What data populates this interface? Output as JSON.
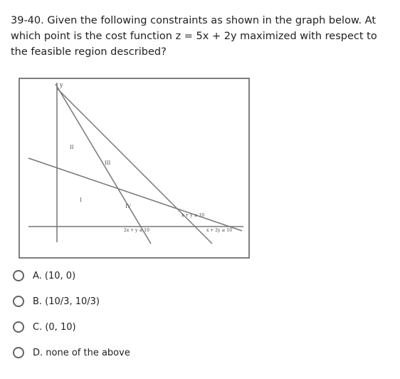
{
  "question": "39-40. Given the following constraints as shown in the graph below. At which point is the cost function z = 5x + 2y maximized with respect to the feasible region described?",
  "graph": {
    "axis_label": "y",
    "regions": [
      "II",
      "III",
      "I",
      "IV"
    ],
    "constraints": [
      "x + y ≤ 10",
      "2x + y ≥ 10",
      "x + 2y ≥ 10"
    ]
  },
  "options": [
    "A. (10, 0)",
    "B. (10/3, 10/3)",
    "C. (0, 10)",
    "D. none of the above"
  ]
}
